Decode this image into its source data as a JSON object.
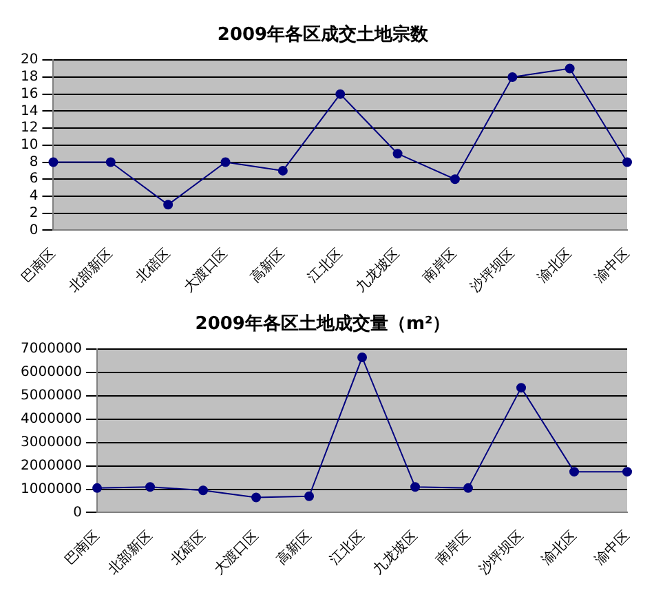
{
  "chart_data": [
    {
      "type": "line",
      "title": "2009年各区成交土地宗数",
      "categories": [
        "巴南区",
        "北部新区",
        "北碚区",
        "大渡口区",
        "高新区",
        "江北区",
        "九龙坡区",
        "南岸区",
        "沙坪坝区",
        "渝北区",
        "渝中区"
      ],
      "series": [
        {
          "color": "#000080",
          "values": [
            8,
            8,
            3,
            8,
            7,
            16,
            9,
            6,
            18,
            19,
            8
          ]
        }
      ],
      "ylim": [
        0,
        20
      ],
      "yticks": [
        0,
        2,
        4,
        6,
        8,
        10,
        12,
        14,
        16,
        18,
        20
      ],
      "grid": "y",
      "marker": "circle",
      "line_style": "solid"
    },
    {
      "type": "line",
      "title": "2009年各区土地成交量（m²）",
      "categories": [
        "巴南区",
        "北部新区",
        "北碚区",
        "大渡口区",
        "高新区",
        "江北区",
        "九龙坡区",
        "南岸区",
        "沙坪坝区",
        "渝北区",
        "渝中区"
      ],
      "series": [
        {
          "color": "#000080",
          "values": [
            1050000,
            1100000,
            950000,
            650000,
            700000,
            6650000,
            1100000,
            1050000,
            5350000,
            1750000,
            1750000
          ]
        }
      ],
      "ylim": [
        0,
        7000000
      ],
      "yticks": [
        0,
        1000000,
        2000000,
        3000000,
        4000000,
        5000000,
        6000000,
        7000000
      ],
      "grid": "y",
      "marker": "circle",
      "line_style": "solid"
    }
  ]
}
